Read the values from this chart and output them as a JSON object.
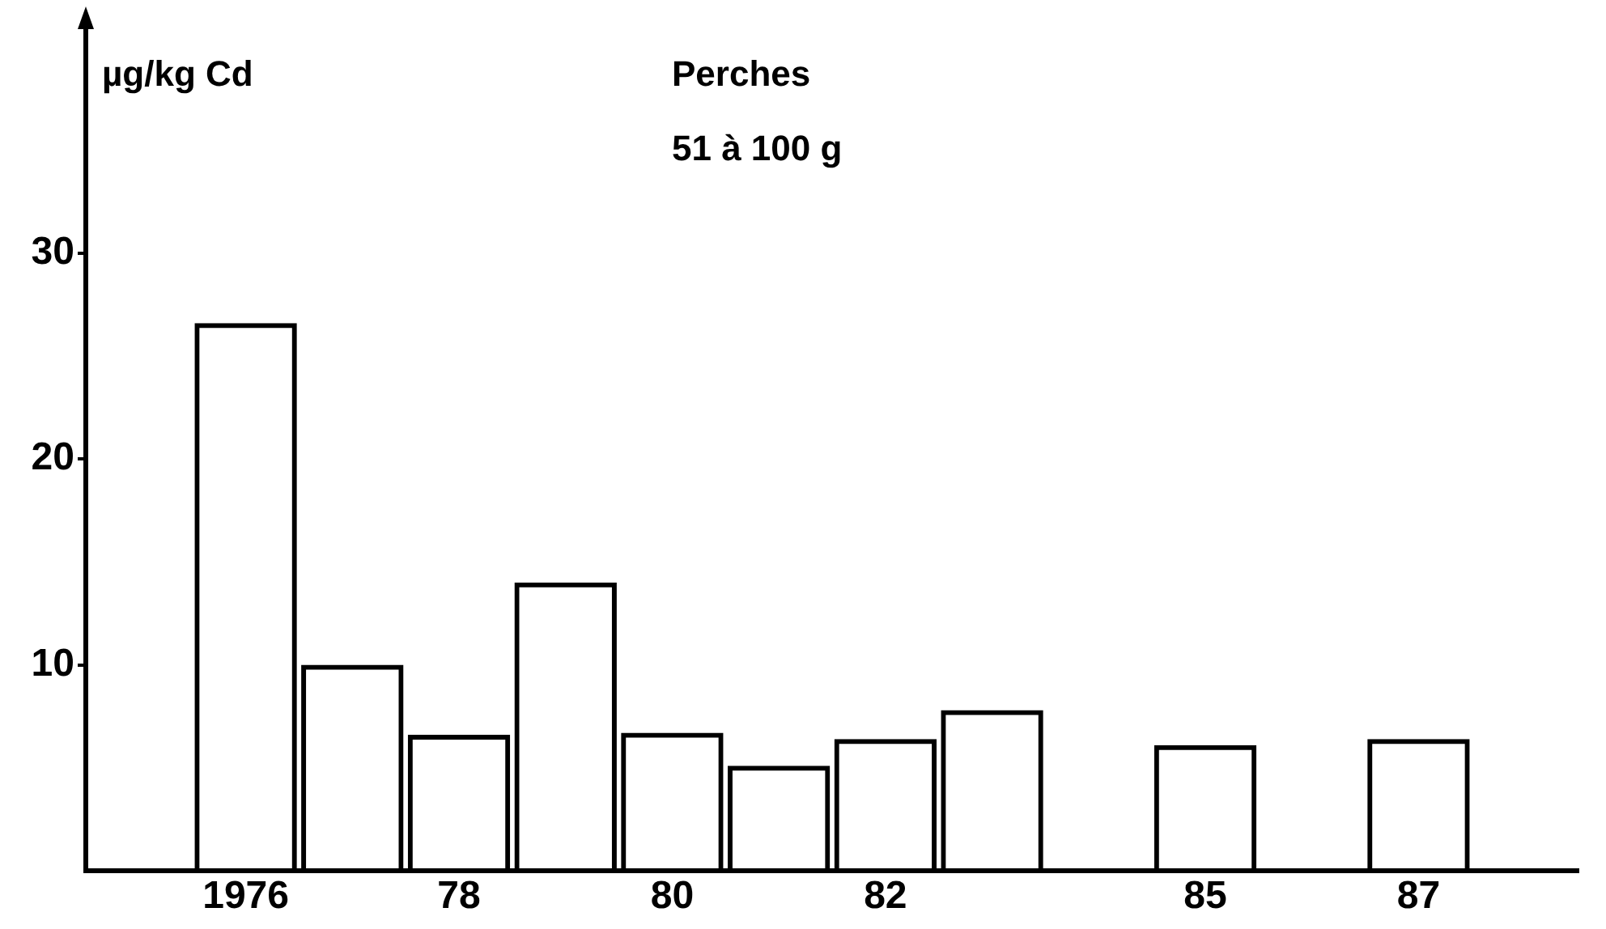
{
  "chart_data": {
    "type": "bar",
    "title": "Perches",
    "subtitle": "51 à 100 g",
    "ylabel": "µg/kg Cd",
    "categories": [
      null,
      "1976",
      null,
      "78",
      null,
      "80",
      null,
      "82",
      null,
      null,
      "85",
      null,
      "87",
      null
    ],
    "values": [
      null,
      26.6,
      10.0,
      6.6,
      14.0,
      6.7,
      5.1,
      6.4,
      7.8,
      null,
      6.1,
      null,
      6.4,
      null
    ],
    "color": "#000000",
    "ylim": [
      0,
      41
    ],
    "yticks": [
      10,
      20,
      30
    ],
    "grid": false,
    "legend": false
  }
}
